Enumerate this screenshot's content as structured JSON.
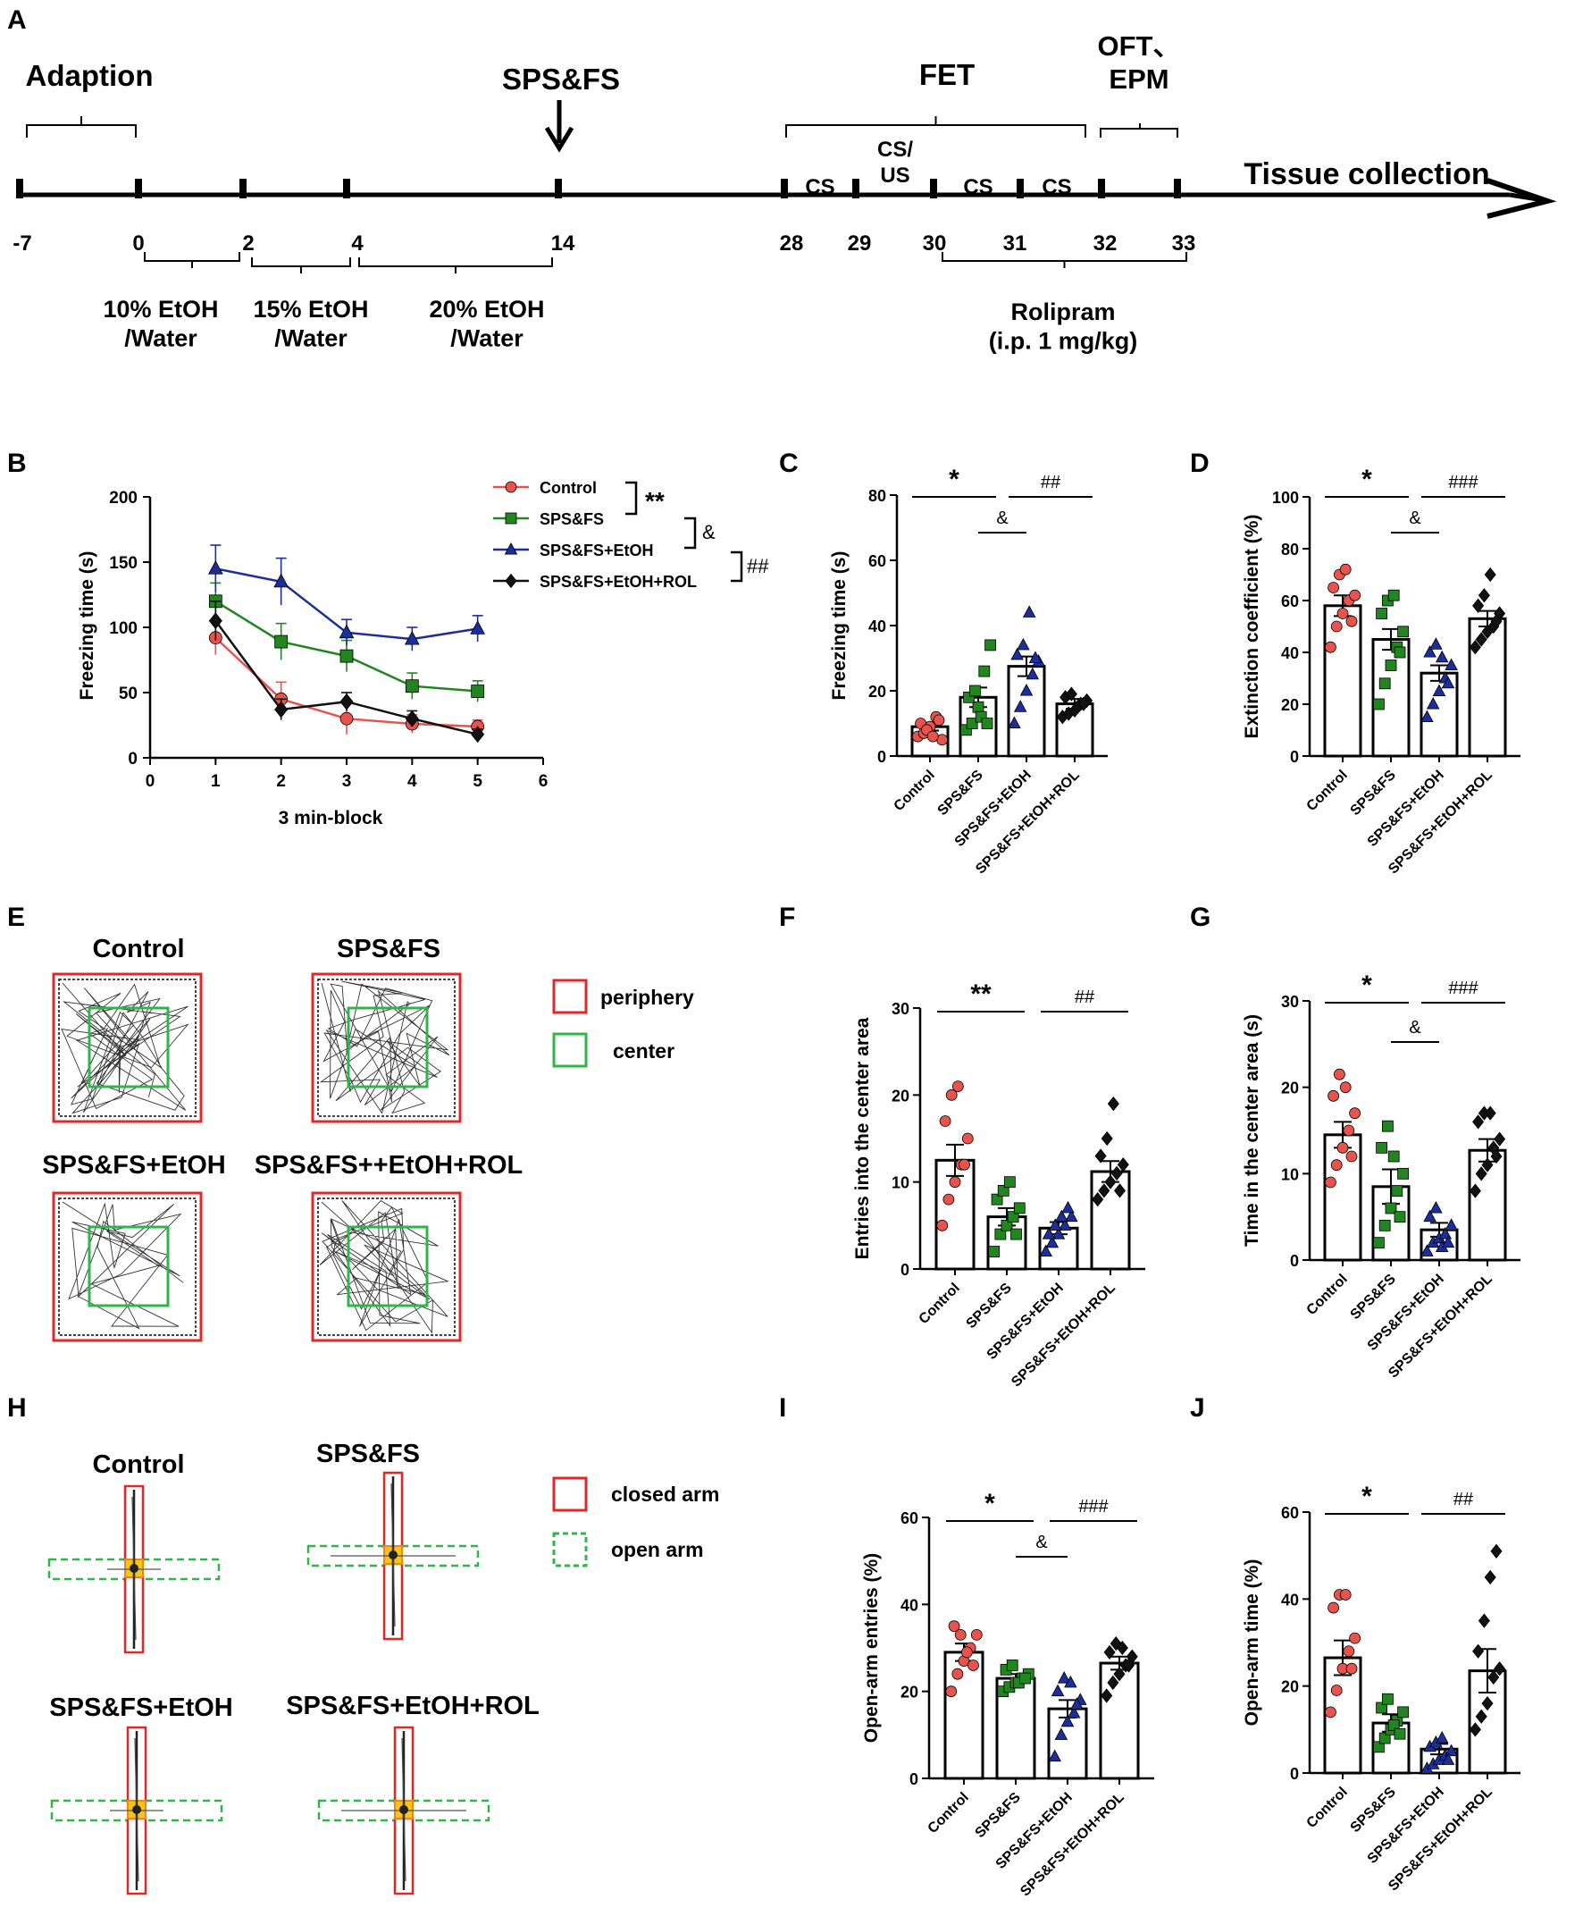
{
  "colors": {
    "control": "#e8544d",
    "spsfs": "#21861f",
    "etoh": "#1c2d9c",
    "rol": "#111111",
    "periphery": "#e02828",
    "center": "#2fb54a",
    "black": "#000000",
    "yellow": "#f5c518"
  },
  "panel_labels": [
    "A",
    "B",
    "C",
    "D",
    "E",
    "F",
    "G",
    "H",
    "I",
    "J"
  ],
  "group_labels": [
    "Control",
    "SPS&FS",
    "SPS&FS+EtOH",
    "SPS&FS+EtOH+ROL"
  ],
  "timeline": {
    "arrow_label": "SPS&FS",
    "end_label": "Tissue collection",
    "brackets": [
      "Adaption",
      "FET",
      "OFT、\nEPM"
    ],
    "days": [
      "-7",
      "0",
      "2",
      "4",
      "14",
      "28",
      "29",
      "30",
      "31",
      "32",
      "33"
    ],
    "cs": [
      "CS",
      "CS/\nUS",
      "CS",
      "CS"
    ],
    "etoh": [
      "10% EtOH\n/Water",
      "15% EtOH\n/Water",
      "20% EtOH\n/Water"
    ],
    "rolipram": "Rolipram\n(i.p. 1 mg/kg)"
  },
  "chart_data": [
    {
      "id": "B",
      "type": "line",
      "xlabel": "3 min-block",
      "ylabel": "Freezing time (s)",
      "xlim": [
        0,
        6
      ],
      "ylim": [
        0,
        200
      ],
      "xticks": [
        "0",
        "1",
        "2",
        "3",
        "4",
        "5",
        "6"
      ],
      "yticks": [
        "0",
        "50",
        "100",
        "150",
        "200"
      ],
      "x": [
        1,
        2,
        3,
        4,
        5
      ],
      "series": [
        {
          "name": "Control",
          "marker": "circle",
          "values": [
            92,
            45,
            30,
            26,
            24
          ],
          "errors": [
            13,
            13,
            12,
            7,
            5
          ]
        },
        {
          "name": "SPS&FS",
          "marker": "square",
          "values": [
            120,
            89,
            78,
            55,
            51
          ],
          "errors": [
            14,
            14,
            12,
            10,
            8
          ]
        },
        {
          "name": "SPS&FS+EtOH",
          "marker": "triangle",
          "values": [
            145,
            135,
            96,
            91,
            99
          ],
          "errors": [
            18,
            18,
            10,
            9,
            10
          ]
        },
        {
          "name": "SPS&FS+EtOH+ROL",
          "marker": "diamond",
          "values": [
            105,
            37,
            43,
            30,
            18
          ],
          "errors": [
            15,
            8,
            7,
            6,
            4
          ]
        }
      ],
      "annotations": [
        "**",
        "&",
        "##"
      ]
    },
    {
      "id": "C",
      "type": "bar",
      "ylabel": "Freezing time (s)",
      "ylim": [
        0,
        80
      ],
      "yticks": [
        "0",
        "20",
        "40",
        "60",
        "80"
      ],
      "values": [
        9,
        18,
        27.5,
        16
      ],
      "errors": [
        1.2,
        3,
        3,
        1.5
      ],
      "points": [
        [
          6,
          7,
          9,
          12,
          5,
          10,
          8,
          6,
          11
        ],
        [
          8,
          10,
          15,
          26,
          34,
          18,
          20,
          12,
          10
        ],
        [
          10,
          15,
          20,
          25,
          29,
          31,
          34,
          44,
          30
        ],
        [
          12,
          13,
          14,
          16,
          17,
          18,
          19,
          15,
          16
        ]
      ],
      "annotations": [
        "*",
        "&",
        "##"
      ]
    },
    {
      "id": "D",
      "type": "bar",
      "ylabel": "Extinction coefficient (%)",
      "ylim": [
        0,
        100
      ],
      "yticks": [
        "0",
        "20",
        "40",
        "60",
        "80",
        "100"
      ],
      "values": [
        58,
        45,
        32,
        53
      ],
      "errors": [
        4,
        4,
        3,
        3
      ],
      "points": [
        [
          42,
          50,
          55,
          60,
          62,
          65,
          70,
          72,
          52
        ],
        [
          20,
          28,
          35,
          42,
          48,
          55,
          60,
          62,
          40
        ],
        [
          15,
          20,
          25,
          30,
          35,
          40,
          43,
          38,
          28
        ],
        [
          42,
          45,
          48,
          50,
          55,
          58,
          62,
          70,
          52
        ]
      ],
      "annotations": [
        "*",
        "&",
        "###"
      ]
    },
    {
      "id": "F",
      "type": "bar",
      "ylabel": "Entries into  the center area",
      "ylim": [
        0,
        30
      ],
      "yticks": [
        "0",
        "10",
        "20",
        "30"
      ],
      "values": [
        12.5,
        6,
        4.7,
        11.2
      ],
      "errors": [
        1.8,
        1,
        0.7,
        1.2
      ],
      "points": [
        [
          5,
          8,
          10,
          12,
          15,
          17,
          20,
          21,
          12
        ],
        [
          2,
          4,
          5,
          6,
          7,
          8,
          9,
          10,
          4
        ],
        [
          2,
          3,
          4,
          5,
          6,
          4,
          5,
          6,
          7
        ],
        [
          8,
          9,
          10,
          11,
          12,
          13,
          15,
          19,
          9
        ]
      ],
      "annotations": [
        "**",
        "##"
      ]
    },
    {
      "id": "G",
      "type": "bar",
      "ylabel": "Time in the center area (s)",
      "ylim": [
        0,
        30
      ],
      "yticks": [
        "0",
        "10",
        "20",
        "30"
      ],
      "values": [
        14.5,
        8.5,
        3.5,
        12.7
      ],
      "errors": [
        1.5,
        2,
        0.8,
        1.3
      ],
      "points": [
        [
          9,
          11,
          13,
          15,
          17,
          19,
          21.5,
          20,
          12
        ],
        [
          2,
          4,
          6,
          8,
          10,
          13,
          15.5,
          12,
          5
        ],
        [
          1,
          2,
          2.5,
          3,
          4,
          5,
          6,
          1.5,
          2
        ],
        [
          8,
          10,
          11,
          13,
          14,
          16,
          17,
          17,
          12
        ]
      ],
      "annotations": [
        "*",
        "&",
        "###"
      ]
    },
    {
      "id": "I",
      "type": "bar",
      "ylabel": "Open-arm entries (%)",
      "ylim": [
        0,
        60
      ],
      "yticks": [
        "0",
        "20",
        "40",
        "60"
      ],
      "values": [
        29,
        23,
        16,
        26.5
      ],
      "errors": [
        2,
        1,
        2,
        1.5
      ],
      "points": [
        [
          20,
          24,
          27,
          30,
          33,
          35,
          33,
          29,
          26
        ],
        [
          20,
          21,
          22,
          23,
          24,
          25,
          26,
          22,
          23
        ],
        [
          5,
          10,
          13,
          15,
          18,
          20,
          23,
          22,
          17
        ],
        [
          19,
          22,
          24,
          26,
          28,
          29,
          31,
          30,
          26
        ]
      ],
      "annotations": [
        "*",
        "&",
        "###"
      ]
    },
    {
      "id": "J",
      "type": "bar",
      "ylabel": "Open-arm time (%)",
      "ylim": [
        0,
        60
      ],
      "yticks": [
        "0",
        "20",
        "40",
        "60"
      ],
      "values": [
        26.5,
        11.5,
        5.5,
        23.5
      ],
      "errors": [
        4,
        2,
        1.2,
        5
      ],
      "points": [
        [
          14,
          19,
          24,
          28,
          31,
          38,
          41,
          41,
          24
        ],
        [
          6,
          8,
          10,
          12,
          14,
          15,
          17,
          11,
          9
        ],
        [
          1,
          2,
          3,
          4,
          5,
          6,
          7,
          8,
          3
        ],
        [
          10,
          13,
          16,
          22,
          24,
          28,
          35,
          45,
          51
        ]
      ],
      "annotations": [
        "*",
        "##"
      ]
    }
  ],
  "of": {
    "labels": [
      "Control",
      "SPS&FS",
      "SPS&FS+EtOH",
      "SPS&FS++EtOH+ROL"
    ],
    "legend": [
      "periphery",
      "center"
    ]
  },
  "epm": {
    "labels": [
      "Control",
      "SPS&FS",
      "SPS&FS+EtOH",
      "SPS&FS+EtOH+ROL"
    ],
    "legend": [
      "closed arm",
      "open arm"
    ]
  }
}
